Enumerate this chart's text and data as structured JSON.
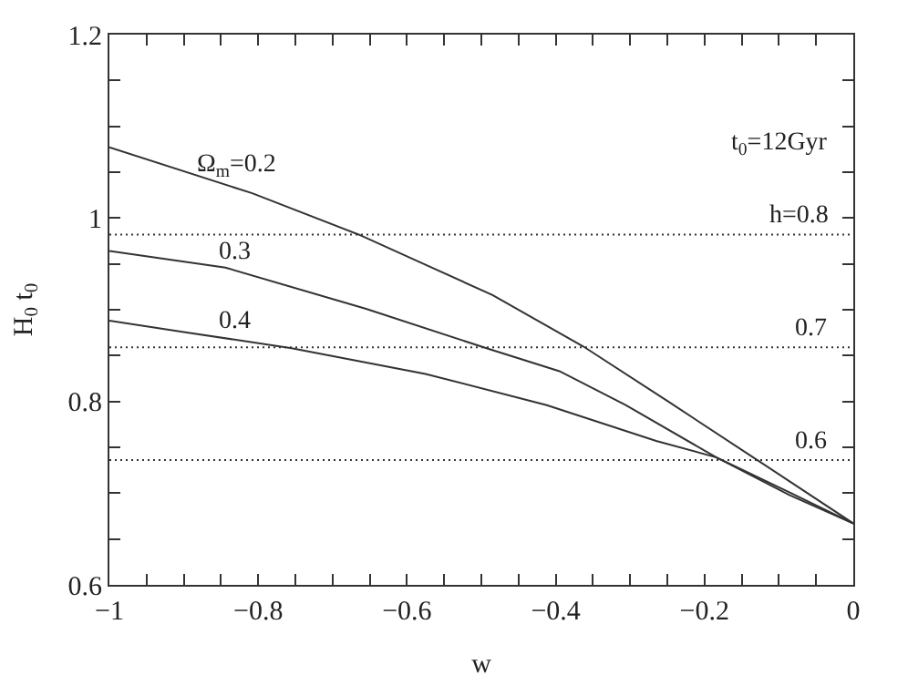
{
  "chart_data": {
    "type": "line",
    "xlabel": "w",
    "ylabel": "H$_{0}$ t$_{0}$",
    "series": [
      {
        "name": "Ω$_{m}$=0.2",
        "color": "#333333",
        "x": [
          -1,
          -0.808,
          -0.665,
          -0.575,
          -0.485,
          -0.363,
          -0.249,
          -0.127,
          0
        ],
        "values": [
          1.077,
          1.027,
          0.982,
          0.949,
          0.916,
          0.86,
          0.8,
          0.735,
          0.667
        ]
      },
      {
        "name": "0.3",
        "color": "#333333",
        "x": [
          -1,
          -0.844,
          -0.655,
          -0.493,
          -0.395,
          -0.306,
          -0.184,
          -0.086,
          0
        ],
        "values": [
          0.964,
          0.946,
          0.901,
          0.858,
          0.833,
          0.796,
          0.739,
          0.701,
          0.667
        ]
      },
      {
        "name": "0.4",
        "color": "#333333",
        "x": [
          -1,
          -0.902,
          -0.755,
          -0.575,
          -0.412,
          -0.265,
          -0.184,
          -0.086,
          0
        ],
        "values": [
          0.888,
          0.876,
          0.858,
          0.83,
          0.796,
          0.757,
          0.739,
          0.698,
          0.667
        ]
      }
    ],
    "annotations": [
      "t$_{0}$=12Gyr",
      "h=0.8",
      "0.7",
      "0.6"
    ],
    "ref_lines": [
      {
        "axis": "y",
        "value": 0.982,
        "line_style": "dotted"
      },
      {
        "axis": "y",
        "value": 0.859,
        "line_style": "dotted"
      },
      {
        "axis": "y",
        "value": 0.736,
        "line_style": "dotted"
      }
    ],
    "xlim": [
      -1,
      0
    ],
    "xticks": [
      {
        "value": -1,
        "label": "−1"
      },
      {
        "value": -0.95,
        "label": null
      },
      {
        "value": -0.9,
        "label": null
      },
      {
        "value": -0.85,
        "label": null
      },
      {
        "value": -0.8,
        "label": "−0.8"
      },
      {
        "value": -0.75,
        "label": null
      },
      {
        "value": -0.7,
        "label": null
      },
      {
        "value": -0.65,
        "label": null
      },
      {
        "value": -0.6,
        "label": "−0.6"
      },
      {
        "value": -0.55,
        "label": null
      },
      {
        "value": -0.5,
        "label": null
      },
      {
        "value": -0.45,
        "label": null
      },
      {
        "value": -0.4,
        "label": "−0.4"
      },
      {
        "value": -0.35,
        "label": null
      },
      {
        "value": -0.3,
        "label": null
      },
      {
        "value": -0.25,
        "label": null
      },
      {
        "value": -0.2,
        "label": "−0.2"
      },
      {
        "value": -0.15,
        "label": null
      },
      {
        "value": -0.1,
        "label": null
      },
      {
        "value": -0.05,
        "label": null
      },
      0
    ],
    "ylim": [
      0.6,
      1.2
    ],
    "yticks": [
      0.6,
      {
        "value": 0.65,
        "label": null
      },
      {
        "value": 0.7,
        "label": null
      },
      {
        "value": 0.75,
        "label": null
      },
      0.8,
      {
        "value": 0.85,
        "label": null
      },
      {
        "value": 0.9,
        "label": null
      },
      {
        "value": 0.95,
        "label": null
      },
      1,
      {
        "value": 1.05,
        "label": null
      },
      {
        "value": 1.1,
        "label": null
      },
      {
        "value": 1.15,
        "label": null
      },
      1.2
    ],
    "marker": "none",
    "line_style": "solid"
  }
}
